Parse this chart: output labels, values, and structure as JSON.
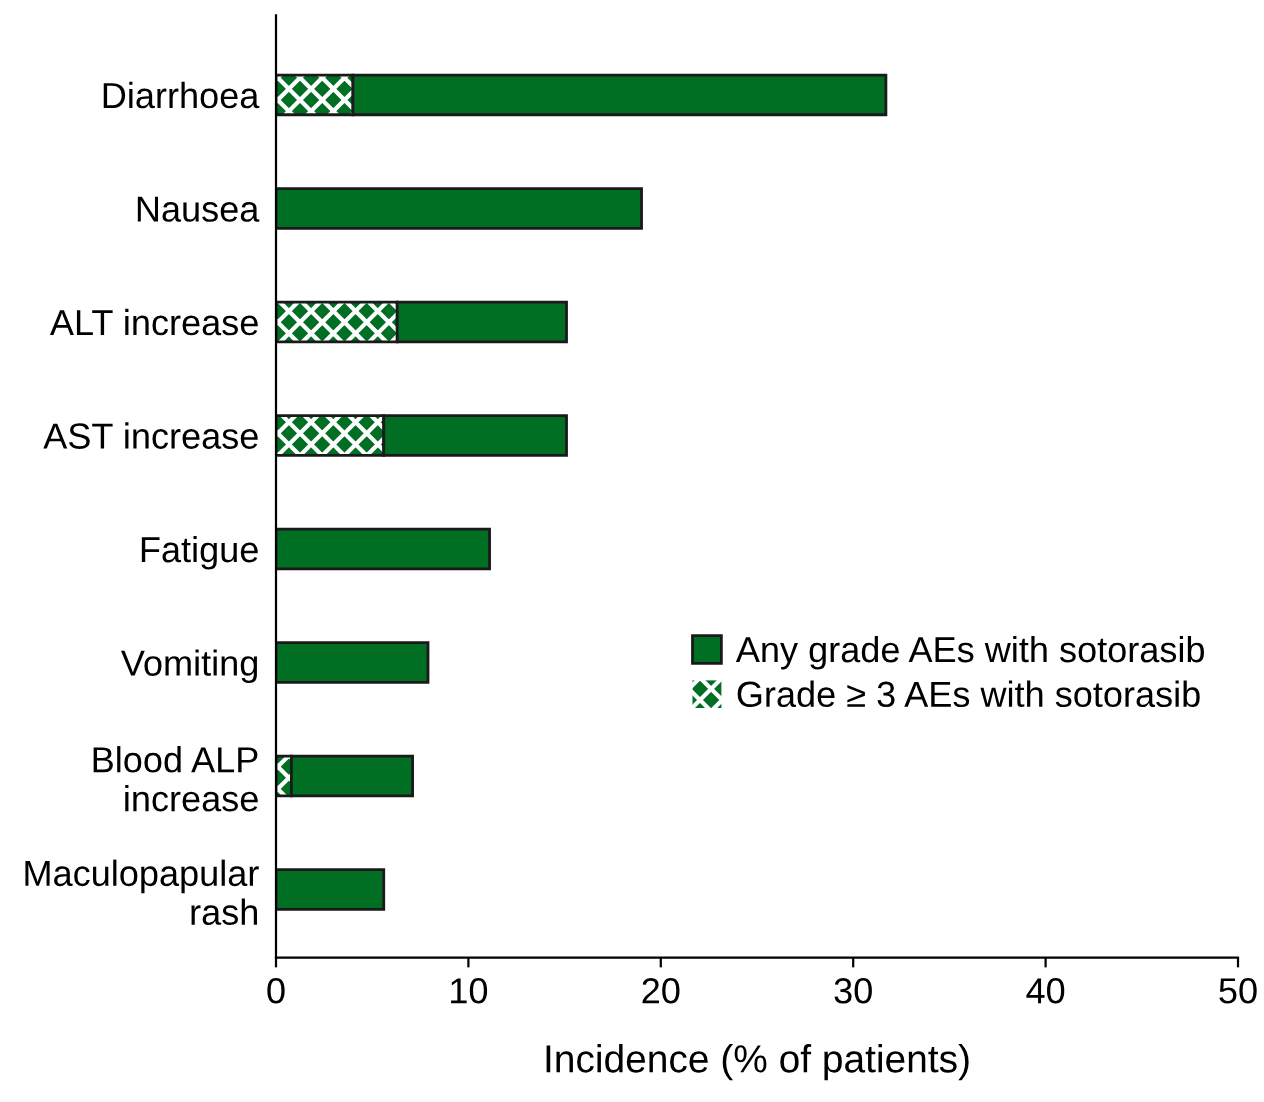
{
  "chart_data": {
    "type": "bar",
    "orientation": "horizontal",
    "stacked": true,
    "categories": [
      "Diarrhoea",
      "Nausea",
      "ALT increase",
      "AST increase",
      "Fatigue",
      "Vomiting",
      "Blood ALP\nincrease",
      "Maculopapular\nrash"
    ],
    "series": [
      {
        "name": "Grade ≥ 3 AEs with sotorasib",
        "color": "#006f23",
        "values": [
          4.0,
          null,
          6.3,
          5.6,
          null,
          null,
          0.8,
          null
        ]
      },
      {
        "name": "Any grade AEs with sotorasib",
        "color": "#006f23",
        "values": [
          27.7,
          19.0,
          8.8,
          9.5,
          11.1,
          7.9,
          6.3,
          5.6
        ]
      }
    ],
    "xlabel": "Incidence (% of patients)",
    "xlim": [
      0,
      50
    ],
    "xticks": [
      0,
      10,
      20,
      30,
      40,
      50
    ],
    "legend": "right",
    "grid": false
  }
}
